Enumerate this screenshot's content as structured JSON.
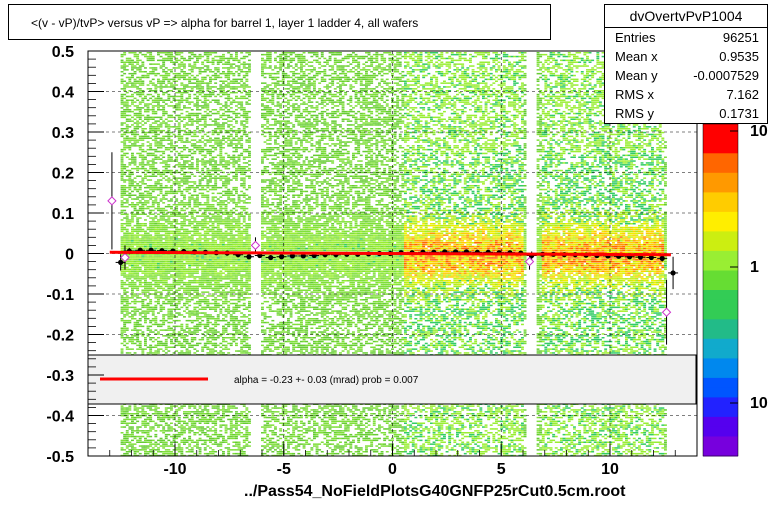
{
  "title": "<(v - vP)/tvP> versus   vP => alpha for barrel 1, layer 1 ladder 4, all wafers",
  "stats": {
    "name": "dvOvertvPvP1004",
    "rows": [
      {
        "label": "Entries",
        "value": "96251"
      },
      {
        "label": "Mean x",
        "value": "0.9535"
      },
      {
        "label": "Mean y",
        "value": "-0.0007529"
      },
      {
        "label": "RMS x",
        "value": "7.162"
      },
      {
        "label": "RMS y",
        "value": "0.1731"
      }
    ]
  },
  "fit_legend": "alpha =   -0.23 +-  0.03 (mrad) prob = 0.007",
  "footer": "../Pass54_NoFieldPlotsG40GNFP25rCut0.5cm.root",
  "colors": {
    "fit_line": "#ff0000",
    "profile_markers": "#000000",
    "open_markers": "#cc33cc"
  },
  "chart_data": {
    "type": "heatmap",
    "title": "<(v - vP)/tvP> versus   vP => alpha for barrel 1, layer 1 ladder 4, all wafers",
    "xlim": [
      -14,
      14
    ],
    "ylim": [
      -0.5,
      0.5
    ],
    "x_ticks": [
      -10,
      -5,
      0,
      5,
      10
    ],
    "x_tick_labels": [
      "-10",
      "-5",
      "0",
      "5",
      "10"
    ],
    "y_ticks": [
      0.5,
      0.4,
      0.3,
      0.2,
      0.1,
      0,
      -0.1,
      -0.2,
      -0.3,
      -0.4,
      -0.5
    ],
    "y_tick_labels": [
      "0.5",
      "0.4",
      "0.3",
      "0.2",
      "0.1",
      "0",
      "-0.1",
      "-0.2",
      "-0.3",
      "-0.4",
      "-0.5"
    ],
    "grid": true,
    "colorbar": {
      "scale": "log",
      "tick_labels": [
        "10",
        "1",
        "10"
      ]
    },
    "filled_x_range": [
      -12.5,
      12.5
    ],
    "gaps_x": [
      -6.3,
      6.3
    ],
    "dense_band_x": [
      [
        0.5,
        6.0
      ],
      [
        6.8,
        12.4
      ]
    ],
    "fit_line": {
      "x": [
        -13,
        12.8
      ],
      "y": [
        0.003,
        -0.003
      ]
    },
    "profile": {
      "x": [
        -12.5,
        -12.1,
        -11.6,
        -11.1,
        -10.6,
        -10.1,
        -9.6,
        -9.1,
        -8.6,
        -8.1,
        -7.6,
        -7.1,
        -6.6,
        -6.1,
        -5.6,
        -5.1,
        -4.6,
        -4.1,
        -3.6,
        -3.1,
        -2.6,
        -2.1,
        -1.6,
        -1.1,
        -0.6,
        -0.1,
        0.4,
        0.9,
        1.4,
        1.9,
        2.4,
        2.9,
        3.4,
        3.9,
        4.4,
        4.9,
        5.4,
        5.9,
        6.4,
        6.9,
        7.4,
        7.9,
        8.4,
        8.9,
        9.4,
        9.9,
        10.4,
        10.9,
        11.4,
        11.9,
        12.4,
        12.9
      ],
      "y": [
        -0.022,
        0.006,
        0.008,
        0.008,
        0.007,
        0.006,
        0.005,
        0.004,
        0.003,
        0.002,
        0.001,
        -0.003,
        -0.008,
        -0.005,
        -0.01,
        -0.008,
        -0.006,
        -0.006,
        -0.005,
        -0.003,
        -0.003,
        -0.002,
        -0.002,
        -0.001,
        0.0,
        0.0,
        0.002,
        0.002,
        0.003,
        0.003,
        0.004,
        0.004,
        0.004,
        0.003,
        0.003,
        0.002,
        0.002,
        0.001,
        -0.005,
        -0.002,
        -0.002,
        -0.003,
        -0.003,
        -0.004,
        -0.005,
        -0.006,
        -0.007,
        -0.008,
        -0.009,
        -0.01,
        -0.012,
        -0.048
      ],
      "err": [
        0.02,
        0.008,
        0.006,
        0.006,
        0.006,
        0.005,
        0.005,
        0.005,
        0.005,
        0.005,
        0.005,
        0.005,
        0.006,
        0.006,
        0.006,
        0.005,
        0.005,
        0.005,
        0.005,
        0.005,
        0.005,
        0.005,
        0.005,
        0.005,
        0.005,
        0.005,
        0.004,
        0.004,
        0.004,
        0.004,
        0.004,
        0.004,
        0.004,
        0.004,
        0.004,
        0.004,
        0.004,
        0.004,
        0.01,
        0.004,
        0.004,
        0.004,
        0.004,
        0.004,
        0.004,
        0.004,
        0.005,
        0.005,
        0.005,
        0.006,
        0.008,
        0.04
      ]
    },
    "open_points": {
      "x": [
        -12.9,
        -12.3,
        -6.3,
        6.3,
        12.6
      ],
      "y": [
        0.13,
        -0.01,
        0.02,
        -0.02,
        -0.145
      ],
      "err": [
        0.12,
        0.03,
        0.02,
        0.02,
        0.08
      ]
    }
  }
}
